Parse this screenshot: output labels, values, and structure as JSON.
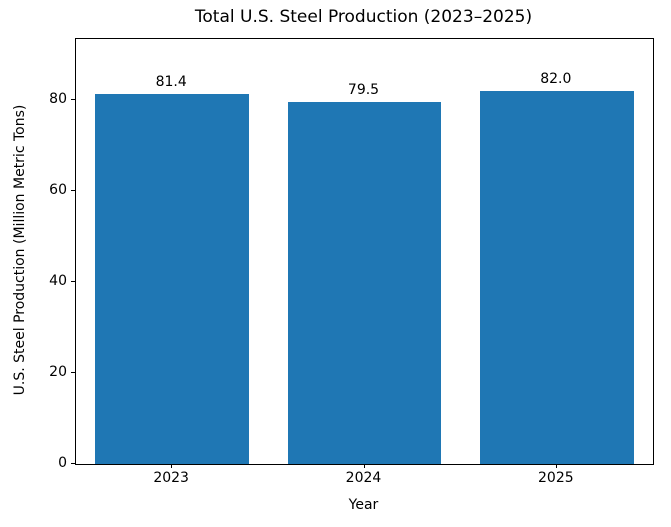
{
  "chart_data": {
    "type": "bar",
    "title": "Total U.S. Steel Production (2023–2025)",
    "xlabel": "Year",
    "ylabel": "U.S. Steel Production (Million Metric Tons)",
    "categories": [
      "2023",
      "2024",
      "2025"
    ],
    "values": [
      81.4,
      79.5,
      82.0
    ],
    "annotations": [
      "81.4",
      "79.5",
      "82.0"
    ],
    "yticks": [
      0,
      20,
      40,
      60,
      80
    ],
    "ylim": [
      0,
      93.4
    ],
    "bar_color": "#1f77b4",
    "bar_width_frac": 0.8,
    "grid": false,
    "legend": "none",
    "background_color": "#ffffff",
    "text_color": "#000000",
    "spine_color": "#000000"
  }
}
